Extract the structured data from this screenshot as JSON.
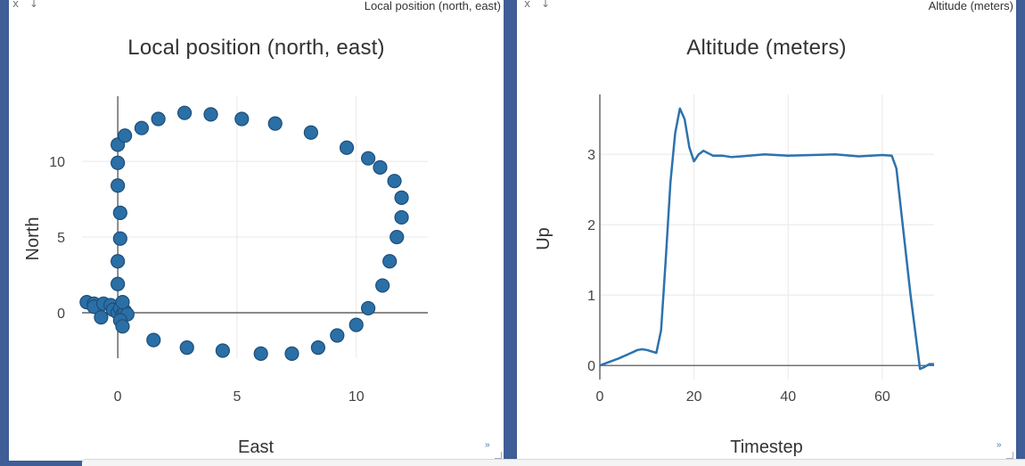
{
  "left_panel": {
    "window_title": "Local position (north, east)",
    "close_glyph": "x",
    "arrow_glyph": "↓",
    "expand_glyph": "»"
  },
  "right_panel": {
    "window_title": "Altitude (meters)",
    "close_glyph": "x",
    "arrow_glyph": "↓",
    "expand_glyph": "»"
  },
  "colors": {
    "background": "#3f5d96",
    "marker": "#2a6fa6",
    "marker_edge": "#1d4e78",
    "line": "#2d72ae"
  },
  "chart_data": [
    {
      "type": "scatter",
      "title": "Local position (north, east)",
      "xlabel": "East",
      "ylabel": "North",
      "xlim": [
        -1.5,
        13
      ],
      "ylim": [
        -3,
        14.3
      ],
      "xticks": [
        0,
        5,
        10
      ],
      "yticks": [
        0,
        5,
        10
      ],
      "grid": true,
      "points": [
        [
          -1.3,
          0.7
        ],
        [
          -1.0,
          0.6
        ],
        [
          -1.0,
          0.4
        ],
        [
          -0.6,
          0.6
        ],
        [
          -0.7,
          -0.3
        ],
        [
          -0.3,
          0.5
        ],
        [
          -0.2,
          0.2
        ],
        [
          0.0,
          0.0
        ],
        [
          0.1,
          0.3
        ],
        [
          0.2,
          -0.1
        ],
        [
          0.3,
          0.1
        ],
        [
          0.4,
          -0.1
        ],
        [
          0.1,
          -0.5
        ],
        [
          0.2,
          -0.9
        ],
        [
          0.2,
          0.7
        ],
        [
          0.0,
          1.9
        ],
        [
          0.0,
          3.4
        ],
        [
          0.1,
          4.9
        ],
        [
          0.1,
          6.6
        ],
        [
          0.0,
          8.4
        ],
        [
          0.0,
          9.9
        ],
        [
          0.0,
          11.1
        ],
        [
          0.3,
          11.7
        ],
        [
          1.0,
          12.2
        ],
        [
          1.7,
          12.8
        ],
        [
          2.8,
          13.2
        ],
        [
          3.9,
          13.1
        ],
        [
          5.2,
          12.8
        ],
        [
          6.6,
          12.5
        ],
        [
          8.1,
          11.9
        ],
        [
          9.6,
          10.9
        ],
        [
          10.5,
          10.2
        ],
        [
          11.0,
          9.6
        ],
        [
          11.6,
          8.7
        ],
        [
          11.9,
          7.6
        ],
        [
          11.9,
          6.3
        ],
        [
          11.7,
          5.0
        ],
        [
          11.4,
          3.4
        ],
        [
          11.1,
          1.8
        ],
        [
          10.5,
          0.3
        ],
        [
          10.0,
          -0.8
        ],
        [
          9.2,
          -1.5
        ],
        [
          8.4,
          -2.3
        ],
        [
          7.3,
          -2.7
        ],
        [
          6.0,
          -2.7
        ],
        [
          4.4,
          -2.5
        ],
        [
          2.9,
          -2.3
        ],
        [
          1.5,
          -1.8
        ]
      ]
    },
    {
      "type": "line",
      "title": "Altitude (meters)",
      "xlabel": "Timestep",
      "ylabel": "Up",
      "xlim": [
        0,
        71
      ],
      "ylim": [
        -0.2,
        3.85
      ],
      "xticks": [
        0,
        20,
        40,
        60
      ],
      "yticks": [
        0,
        1,
        2,
        3
      ],
      "grid": true,
      "x": [
        0,
        2,
        4,
        6,
        8,
        9,
        10,
        11,
        12,
        13,
        14,
        15,
        16,
        17,
        18,
        19,
        20,
        21,
        22,
        24,
        26,
        28,
        30,
        35,
        40,
        45,
        50,
        55,
        60,
        62,
        63,
        64,
        66,
        68,
        69,
        70,
        71
      ],
      "y": [
        0.0,
        0.05,
        0.1,
        0.16,
        0.22,
        0.23,
        0.22,
        0.2,
        0.18,
        0.5,
        1.5,
        2.6,
        3.3,
        3.65,
        3.5,
        3.1,
        2.9,
        3.0,
        3.05,
        2.98,
        2.98,
        2.96,
        2.97,
        3.0,
        2.98,
        2.99,
        3.0,
        2.97,
        2.99,
        2.98,
        2.8,
        2.2,
        1.0,
        -0.05,
        -0.02,
        0.02,
        0.02
      ]
    }
  ]
}
